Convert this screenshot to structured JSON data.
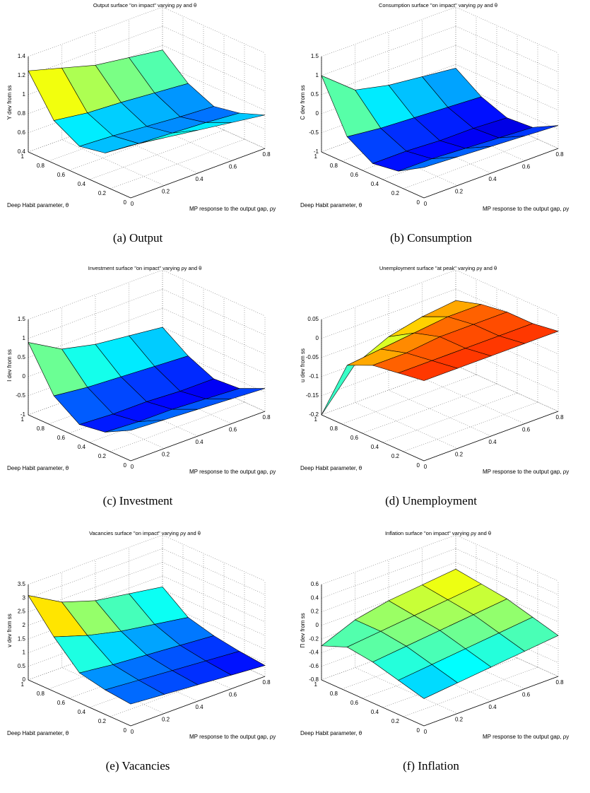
{
  "chart_data": [
    {
      "type": "surface",
      "title": "Output surface \"on impact\"  varying ρy and θ",
      "zlabel": "Y dev from ss",
      "ylabel": "Deep Habit parameter, θ",
      "xlabel": "MP response to the output gap, ρy",
      "caption": "(a) Output",
      "x": [
        0,
        0.2,
        0.4,
        0.6,
        0.8
      ],
      "y": [
        0,
        0.25,
        0.5,
        0.75,
        1
      ],
      "z": [
        [
          0.95,
          0.9,
          0.85,
          0.8,
          0.75
        ],
        [
          0.75,
          0.72,
          0.7,
          0.68,
          0.65
        ],
        [
          0.7,
          0.68,
          0.65,
          0.62,
          0.6
        ],
        [
          0.85,
          0.8,
          0.78,
          0.75,
          0.72
        ],
        [
          1.25,
          1.15,
          1.05,
          1.0,
          0.95
        ]
      ],
      "xlim": [
        0,
        0.8
      ],
      "ylim": [
        0,
        1
      ],
      "zlim": [
        0.4,
        1.4
      ],
      "xticks": [
        0,
        0.2,
        0.4,
        0.6,
        0.8
      ],
      "yticks": [
        0,
        0.2,
        0.4,
        0.6,
        0.8,
        1
      ],
      "zticks": [
        0.4,
        0.6,
        0.8,
        1,
        1.2,
        1.4
      ]
    },
    {
      "type": "surface",
      "title": "Consumption surface \"on impact\"  varying ρy and θ",
      "zlabel": "C dev from ss",
      "ylabel": "Deep Habit parameter, θ",
      "xlabel": "MP response to the output gap, ρy",
      "caption": "(b) Consumption",
      "x": [
        0,
        0.2,
        0.4,
        0.6,
        0.8
      ],
      "y": [
        0,
        0.25,
        0.5,
        0.75,
        1
      ],
      "z": [
        [
          -0.2,
          -0.25,
          -0.3,
          -0.35,
          -0.4
        ],
        [
          -0.6,
          -0.6,
          -0.65,
          -0.7,
          -0.75
        ],
        [
          -0.7,
          -0.7,
          -0.75,
          -0.75,
          -0.8
        ],
        [
          -0.3,
          -0.4,
          -0.45,
          -0.5,
          -0.55
        ],
        [
          1.0,
          0.3,
          0.1,
          0.0,
          -0.1
        ]
      ],
      "xlim": [
        0,
        0.8
      ],
      "ylim": [
        0,
        1
      ],
      "zlim": [
        -1,
        1.5
      ],
      "xticks": [
        0,
        0.2,
        0.4,
        0.6,
        0.8
      ],
      "yticks": [
        0,
        0.2,
        0.4,
        0.6,
        0.8,
        1
      ],
      "zticks": [
        -1,
        -0.5,
        0,
        0.5,
        1,
        1.5
      ]
    },
    {
      "type": "surface",
      "title": "Investment surface \"on impact\"  varying ρy and θ",
      "zlabel": "I dev from ss",
      "ylabel": "Deep Habit parameter, θ",
      "xlabel": "MP response to the output gap, ρy",
      "caption": "(c) Investment",
      "x": [
        0,
        0.2,
        0.4,
        0.6,
        0.8
      ],
      "y": [
        0,
        0.25,
        0.5,
        0.75,
        1
      ],
      "z": [
        [
          -0.2,
          -0.25,
          -0.3,
          -0.35,
          -0.4
        ],
        [
          -0.55,
          -0.6,
          -0.6,
          -0.65,
          -0.7
        ],
        [
          -0.65,
          -0.7,
          -0.7,
          -0.75,
          -0.75
        ],
        [
          -0.2,
          -0.3,
          -0.35,
          -0.4,
          -0.45
        ],
        [
          0.9,
          0.4,
          0.2,
          0.1,
          0.0
        ]
      ],
      "xlim": [
        0,
        0.8
      ],
      "ylim": [
        0,
        1
      ],
      "zlim": [
        -1,
        1.5
      ],
      "xticks": [
        0,
        0.2,
        0.4,
        0.6,
        0.8
      ],
      "yticks": [
        0,
        0.2,
        0.4,
        0.6,
        0.8,
        1
      ],
      "zticks": [
        -1,
        -0.5,
        0,
        0.5,
        1,
        1.5
      ]
    },
    {
      "type": "surface",
      "title": "Unemployment surface \"at peak\"  varying ρy and θ",
      "zlabel": "u dev from ss",
      "ylabel": "Deep Habit parameter, θ",
      "xlabel": "MP response to the output gap, ρy",
      "caption": "(d) Unemployment",
      "x": [
        0,
        0.2,
        0.4,
        0.6,
        0.8
      ],
      "y": [
        0,
        0.25,
        0.5,
        0.75,
        1
      ],
      "z": [
        [
          0.01,
          0.01,
          0.01,
          0.01,
          0.01
        ],
        [
          0.0,
          0.0,
          0.0,
          0.0,
          0.0
        ],
        [
          -0.01,
          -0.01,
          0.0,
          0.0,
          0.0
        ],
        [
          -0.04,
          -0.03,
          -0.02,
          -0.01,
          -0.01
        ],
        [
          -0.2,
          -0.1,
          -0.06,
          -0.04,
          -0.03
        ]
      ],
      "xlim": [
        0,
        0.8
      ],
      "ylim": [
        0,
        1
      ],
      "zlim": [
        -0.2,
        0.05
      ],
      "xticks": [
        0,
        0.2,
        0.4,
        0.6,
        0.8
      ],
      "yticks": [
        0,
        0.2,
        0.4,
        0.6,
        0.8,
        1
      ],
      "zticks": [
        -0.2,
        -0.15,
        -0.1,
        -0.05,
        0,
        0.05
      ]
    },
    {
      "type": "surface",
      "title": "Vacancies surface \"on impact\"  varying ρy and θ",
      "zlabel": "v dev from ss",
      "ylabel": "Deep Habit parameter, θ",
      "xlabel": "MP response to the output gap, ρy",
      "caption": "(e) Vacancies",
      "x": [
        0,
        0.2,
        0.4,
        0.6,
        0.8
      ],
      "y": [
        0,
        0.25,
        0.5,
        0.75,
        1
      ],
      "z": [
        [
          0.8,
          0.7,
          0.6,
          0.5,
          0.4
        ],
        [
          0.9,
          0.8,
          0.7,
          0.6,
          0.5
        ],
        [
          1.1,
          0.95,
          0.85,
          0.75,
          0.65
        ],
        [
          2.0,
          1.6,
          1.3,
          1.1,
          0.9
        ],
        [
          3.1,
          2.4,
          2.0,
          1.8,
          1.6
        ]
      ],
      "xlim": [
        0,
        0.8
      ],
      "ylim": [
        0,
        1
      ],
      "zlim": [
        0,
        3.5
      ],
      "xticks": [
        0,
        0.2,
        0.4,
        0.6,
        0.8
      ],
      "yticks": [
        0,
        0.2,
        0.4,
        0.6,
        0.8,
        1
      ],
      "zticks": [
        0,
        0.5,
        1,
        1.5,
        2,
        2.5,
        3,
        3.5
      ]
    },
    {
      "type": "surface",
      "title": "Inflation surface \"on impact\"  varying ρy and θ",
      "zlabel": "Π dev from ss",
      "ylabel": "Deep Habit parameter, θ",
      "xlabel": "MP response to the output gap, ρy",
      "caption": "(f) Inflation",
      "x": [
        0,
        0.2,
        0.4,
        0.6,
        0.8
      ],
      "y": [
        0,
        0.25,
        0.5,
        0.75,
        1
      ],
      "z": [
        [
          -0.4,
          -0.35,
          -0.3,
          -0.25,
          -0.2
        ],
        [
          -0.3,
          -0.25,
          -0.2,
          -0.15,
          -0.1
        ],
        [
          -0.2,
          -0.15,
          -0.1,
          -0.05,
          0.0
        ],
        [
          -0.15,
          -0.1,
          -0.05,
          0.0,
          0.05
        ],
        [
          -0.3,
          -0.1,
          0.0,
          0.05,
          0.1
        ]
      ],
      "xlim": [
        0,
        0.8
      ],
      "ylim": [
        0,
        1
      ],
      "zlim": [
        -0.8,
        0.6
      ],
      "xticks": [
        0,
        0.2,
        0.4,
        0.6,
        0.8
      ],
      "yticks": [
        0,
        0.2,
        0.4,
        0.6,
        0.8,
        1
      ],
      "zticks": [
        -0.8,
        -0.6,
        -0.4,
        -0.2,
        0,
        0.2,
        0.4,
        0.6
      ]
    }
  ]
}
